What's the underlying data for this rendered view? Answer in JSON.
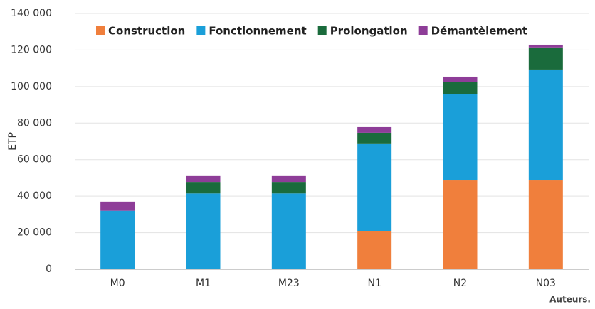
{
  "chart_data": {
    "type": "stacked-bar",
    "categories": [
      "M0",
      "M1",
      "M23",
      "N1",
      "N2",
      "N03"
    ],
    "series": [
      {
        "name": "Construction",
        "color": "#f07f3c",
        "values": [
          0,
          0,
          0,
          21000,
          48600,
          48600
        ]
      },
      {
        "name": "Fonctionnement",
        "color": "#1a9fd9",
        "values": [
          32000,
          41500,
          41500,
          47500,
          47400,
          60700
        ]
      },
      {
        "name": "Prolongation",
        "color": "#1a6b3c",
        "values": [
          0,
          6300,
          6300,
          6200,
          6300,
          12100
        ]
      },
      {
        "name": "Démantèlement",
        "color": "#8e3d98",
        "values": [
          5000,
          3200,
          3200,
          3100,
          3100,
          1500
        ]
      }
    ],
    "ylabel": "ETP",
    "ylim": [
      0,
      140000
    ],
    "yticks": [
      0,
      {
        "value": 20000,
        "label": "20 000"
      },
      {
        "value": 40000,
        "label": "40 000"
      },
      {
        "value": 60000,
        "label": "60 000"
      },
      {
        "value": 80000,
        "label": "80 000"
      },
      {
        "value": 100000,
        "label": "100 000"
      },
      {
        "value": 120000,
        "label": "120 000"
      },
      {
        "value": 140000,
        "label": "140 000"
      }
    ],
    "grid": true,
    "legend": "top",
    "source": "Auteurs."
  }
}
